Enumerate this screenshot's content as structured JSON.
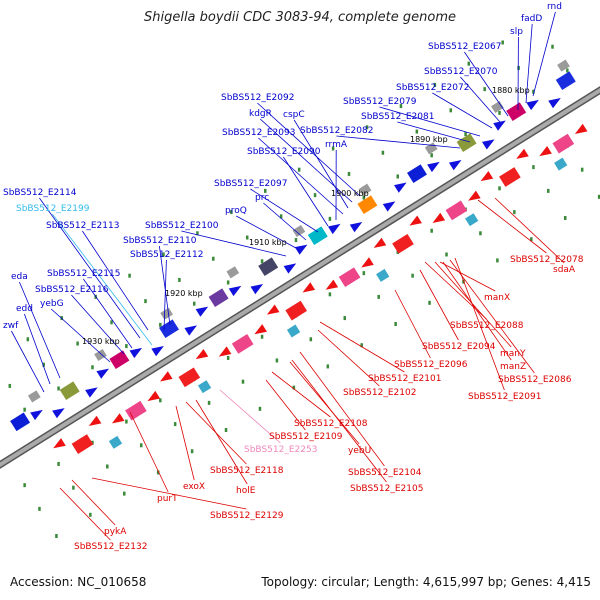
{
  "title": "Shigella boydii CDC 3083-94, complete genome",
  "footer": {
    "accession": "Accession: NC_010658",
    "summary": "Topology: circular; Length: 4,615,997 bp; Genes: 4,415"
  },
  "colors": {
    "forward_label": "#0000cc",
    "reverse_label": "#dd0000",
    "highlight_label": "#33bbee",
    "pink_label": "#ee88bb",
    "forward_feature": "#1111dd",
    "reverse_feature": "#ee1111",
    "backbone": "#888888"
  },
  "scale_marks": [
    "1880 kbp",
    "1890 kbp",
    "1900 kbp",
    "1910 kbp",
    "1920 kbp",
    "1930 kbp"
  ],
  "forward_labels": [
    "rnd",
    "fadD",
    "slp",
    "SbBS512_E2067",
    "SbBS512_E2070",
    "SbBS512_E2072",
    "SbBS512_E2079",
    "SbBS512_E2081",
    "SbBS512_E2082",
    "SbBS512_E2092",
    "kdgR",
    "cspC",
    "SbBS512_E2093",
    "rrmA",
    "SbBS512_E2090",
    "SbBS512_E2097",
    "prc",
    "proQ",
    "SbBS512_E2100",
    "SbBS512_E2110",
    "SbBS512_E2112",
    "SbBS512_E2113",
    "SbBS512_E2114",
    "SbBS512_E2199",
    "SbBS512_E2115",
    "SbBS512_E2116",
    "eda",
    "yebG",
    "edd",
    "zwf"
  ],
  "reverse_labels": [
    "SbBS512_E2078",
    "sdaA",
    "manX",
    "SbBS512_E2088",
    "SbBS512_E2094",
    "manY",
    "manZ",
    "SbBS512_E2086",
    "SbBS512_E2091",
    "SbBS512_E2096",
    "SbBS512_E2101",
    "SbBS512_E2102",
    "SbBS512_E2108",
    "SbBS512_E2109",
    "yebU",
    "SbBS512_E2253",
    "SbBS512_E2104",
    "SbBS512_E2105",
    "SbBS512_E2118",
    "holE",
    "exoX",
    "purT",
    "SbBS512_E2129",
    "pykA",
    "SbBS512_E2132"
  ]
}
